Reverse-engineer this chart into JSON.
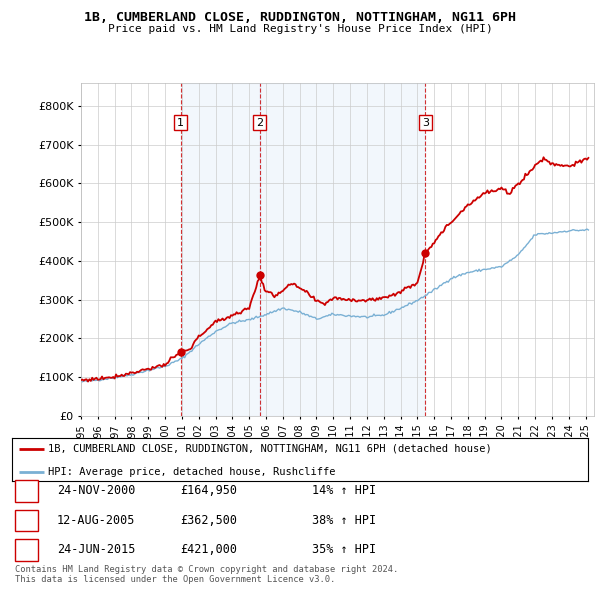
{
  "title": "1B, CUMBERLAND CLOSE, RUDDINGTON, NOTTINGHAM, NG11 6PH",
  "subtitle": "Price paid vs. HM Land Registry's House Price Index (HPI)",
  "ytick_values": [
    0,
    100000,
    200000,
    300000,
    400000,
    500000,
    600000,
    700000,
    800000
  ],
  "ylim": [
    0,
    860000
  ],
  "xlim_start": 1995.0,
  "xlim_end": 2025.5,
  "purchases": [
    {
      "label": "1",
      "date_num": 2000.917,
      "price": 164950,
      "pct": "14%",
      "date_str": "24-NOV-2000",
      "price_str": "£164,950"
    },
    {
      "label": "2",
      "date_num": 2005.625,
      "price": 362500,
      "pct": "38%",
      "date_str": "12-AUG-2005",
      "price_str": "£362,500"
    },
    {
      "label": "3",
      "date_num": 2015.479,
      "price": 421000,
      "pct": "35%",
      "date_str": "24-JUN-2015",
      "price_str": "£421,000"
    }
  ],
  "hpi_line_color": "#7ab0d4",
  "price_line_color": "#cc0000",
  "shade_color": "#ddeeff",
  "background_color": "#ffffff",
  "grid_color": "#cccccc",
  "footer_text": "Contains HM Land Registry data © Crown copyright and database right 2024.\nThis data is licensed under the Open Government Licence v3.0.",
  "legend_line1": "1B, CUMBERLAND CLOSE, RUDDINGTON, NOTTINGHAM, NG11 6PH (detached house)",
  "legend_line2": "HPI: Average price, detached house, Rushcliffe",
  "xtick_years": [
    1995,
    1996,
    1997,
    1998,
    1999,
    2000,
    2001,
    2002,
    2003,
    2004,
    2005,
    2006,
    2007,
    2008,
    2009,
    2010,
    2011,
    2012,
    2013,
    2014,
    2015,
    2016,
    2017,
    2018,
    2019,
    2020,
    2021,
    2022,
    2023,
    2024,
    2025
  ]
}
